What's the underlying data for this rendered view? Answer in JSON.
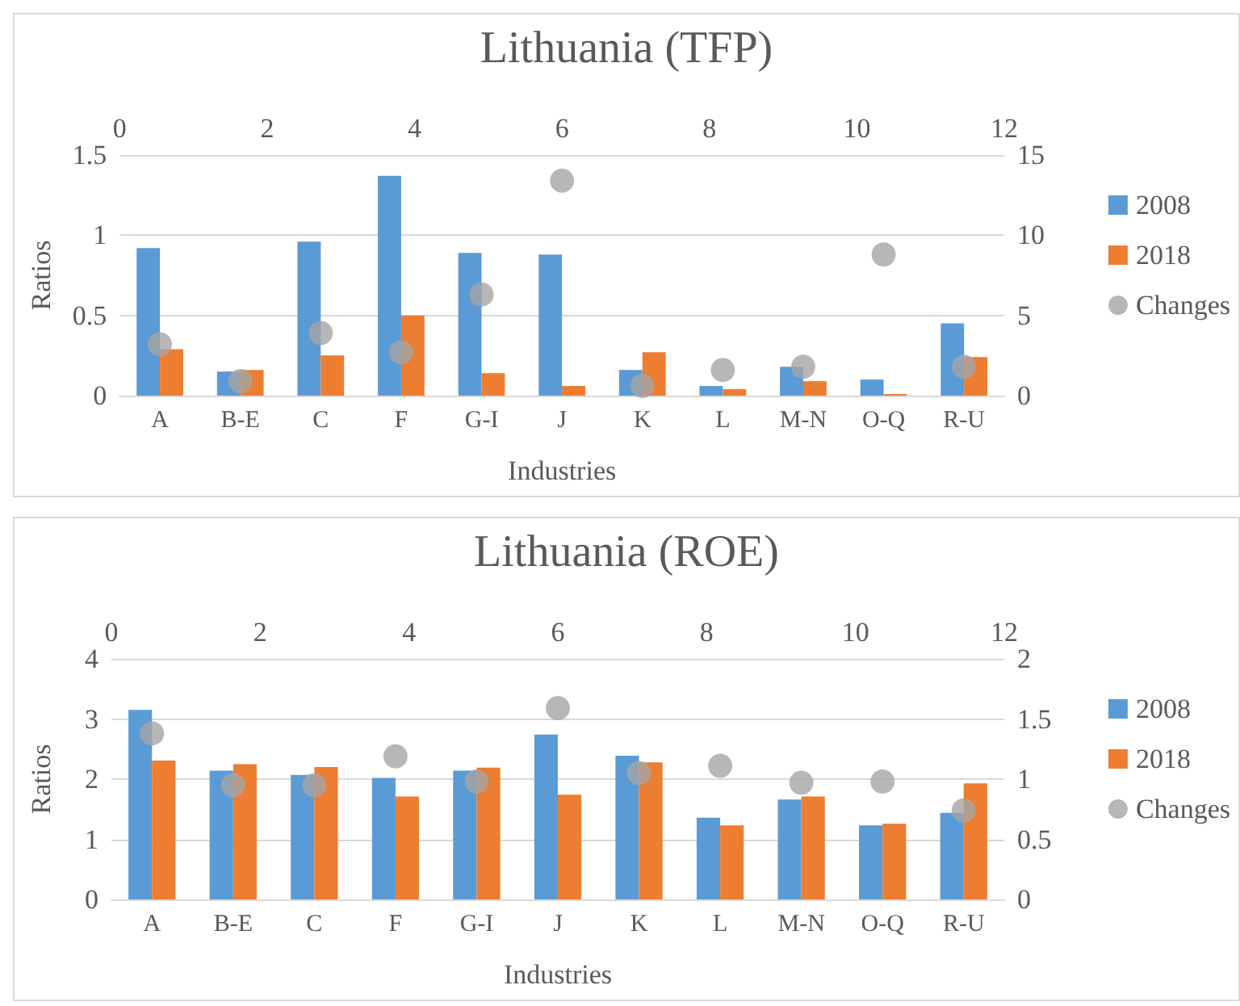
{
  "chart_data": [
    {
      "type": "bar",
      "title": "Lithuania (TFP)",
      "xlabel": "Industries",
      "ylabel": "Ratios",
      "categories": [
        "A",
        "B-E",
        "C",
        "F",
        "G-I",
        "J",
        "K",
        "L",
        "M-N",
        "O-Q",
        "R-U"
      ],
      "ylim": [
        0,
        1.5
      ],
      "yticks": [
        0,
        0.5,
        1,
        1.5
      ],
      "y2lim": [
        0,
        15
      ],
      "y2ticks": [
        0,
        5,
        10,
        15
      ],
      "x2lim": [
        0,
        12
      ],
      "x2ticks": [
        0,
        2,
        4,
        6,
        8,
        10,
        12
      ],
      "grid": "y",
      "legend": "right",
      "series": [
        {
          "name": "2008",
          "color": "#5b9bd5",
          "values": [
            0.92,
            0.15,
            0.96,
            1.37,
            0.89,
            0.88,
            0.16,
            0.06,
            0.18,
            0.1,
            0.45
          ]
        },
        {
          "name": "2018",
          "color": "#ed7d31",
          "values": [
            0.29,
            0.16,
            0.25,
            0.5,
            0.14,
            0.06,
            0.27,
            0.04,
            0.09,
            0.01,
            0.24
          ]
        },
        {
          "name": "Changes",
          "type": "scatter",
          "axis": "y2",
          "marker": "circle",
          "color": "#a5a5a5",
          "values": [
            3.2,
            0.9,
            3.9,
            2.7,
            6.3,
            13.4,
            0.6,
            1.6,
            1.8,
            8.8,
            1.8
          ]
        }
      ]
    },
    {
      "type": "bar",
      "title": "Lithuania (ROE)",
      "xlabel": "Industries",
      "ylabel": "Ratios",
      "categories": [
        "A",
        "B-E",
        "C",
        "F",
        "G-I",
        "J",
        "K",
        "L",
        "M-N",
        "O-Q",
        "R-U"
      ],
      "ylim": [
        0,
        4
      ],
      "yticks": [
        0,
        1,
        2,
        3,
        4
      ],
      "y2lim": [
        0,
        2
      ],
      "y2ticks": [
        0,
        0.5,
        1,
        1.5,
        2
      ],
      "x2lim": [
        0,
        12
      ],
      "x2ticks": [
        0,
        2,
        4,
        6,
        8,
        10,
        12
      ],
      "grid": "y",
      "legend": "right",
      "series": [
        {
          "name": "2008",
          "color": "#5b9bd5",
          "values": [
            3.15,
            2.14,
            2.07,
            2.02,
            2.14,
            2.74,
            2.39,
            1.36,
            1.66,
            1.23,
            1.44
          ]
        },
        {
          "name": "2018",
          "color": "#ed7d31",
          "values": [
            2.31,
            2.25,
            2.2,
            1.71,
            2.19,
            1.74,
            2.28,
            1.23,
            1.71,
            1.26,
            1.93
          ]
        },
        {
          "name": "Changes",
          "type": "scatter",
          "axis": "y2",
          "marker": "circle",
          "color": "#a5a5a5",
          "values": [
            1.38,
            0.95,
            0.95,
            1.19,
            0.98,
            1.59,
            1.05,
            1.11,
            0.97,
            0.98,
            0.74
          ]
        }
      ]
    }
  ]
}
